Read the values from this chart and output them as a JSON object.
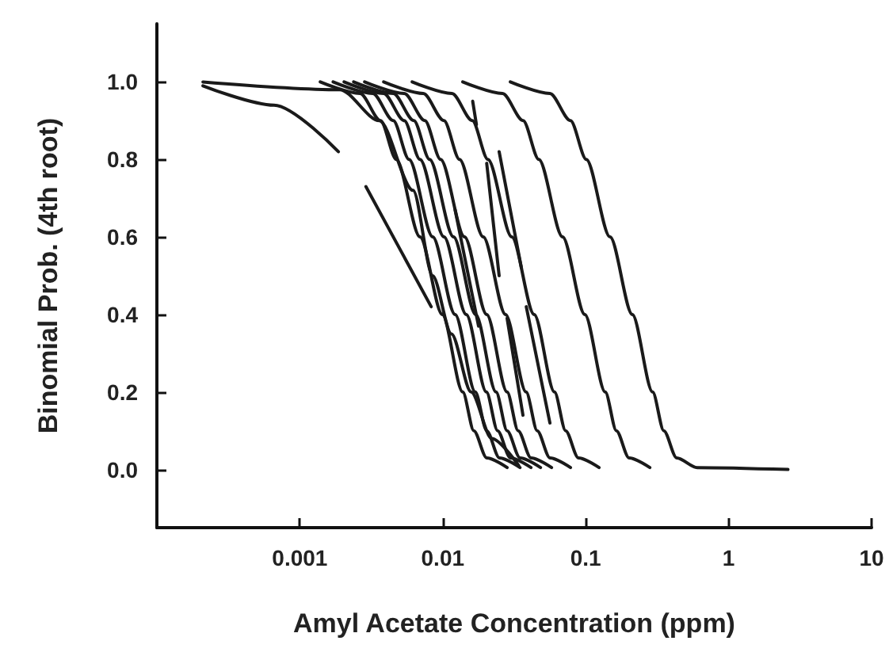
{
  "chart_data": {
    "type": "line",
    "xlabel": "Amyl Acetate Concentration (ppm)",
    "ylabel": "Binomial Prob. (4th root)",
    "log": "x",
    "grid": false,
    "marker": "none",
    "line_style": "solid",
    "xlim": [
      0.0001,
      10
    ],
    "xticks": [
      0.001,
      0.01,
      0.1,
      1,
      10
    ],
    "ylim": [
      -0.15,
      1.15
    ],
    "yticks": [
      {
        "value": 0,
        "label": "0.0"
      },
      {
        "value": 0.2,
        "label": "0.2"
      },
      {
        "value": 0.4,
        "label": "0.4"
      },
      {
        "value": 0.6,
        "label": "0.6"
      },
      {
        "value": 0.8,
        "label": "0.8"
      },
      {
        "value": 1,
        "label": "1.0"
      }
    ],
    "series": [
      {
        "color": "#1a1a1a",
        "x": [
          0.00021,
          0.0019,
          0.0036,
          0.0062,
          0.0085,
          0.0115,
          0.0158,
          0.022,
          0.034
        ],
        "values": [
          1,
          0.98,
          0.9,
          0.72,
          0.5,
          0.35,
          0.2,
          0.08,
          0.01
        ]
      },
      {
        "color": "#1a1a1a",
        "x": [
          0.00139,
          0.00264,
          0.00367,
          0.00473,
          0.00693,
          0.00993,
          0.0138,
          0.0165,
          0.0203,
          0.0282
        ],
        "values": [
          1,
          0.97,
          0.9,
          0.8,
          0.6,
          0.4,
          0.2,
          0.1,
          0.03,
          0.005
        ]
      },
      {
        "color": "#1a1a1a",
        "x": [
          0.00171,
          0.00324,
          0.00451,
          0.00581,
          0.00851,
          0.0122,
          0.0169,
          0.0203,
          0.0249,
          0.0347
        ],
        "values": [
          1,
          0.97,
          0.9,
          0.8,
          0.6,
          0.4,
          0.2,
          0.1,
          0.03,
          0.005
        ]
      },
      {
        "color": "#1a1a1a",
        "x": [
          0.00204,
          0.00386,
          0.00538,
          0.00693,
          0.0102,
          0.0146,
          0.0202,
          0.0242,
          0.0297,
          0.0414
        ],
        "values": [
          1,
          0.97,
          0.9,
          0.8,
          0.6,
          0.4,
          0.2,
          0.1,
          0.03,
          0.005
        ]
      },
      {
        "color": "#1a1a1a",
        "x": [
          0.00238,
          0.00451,
          0.00628,
          0.00809,
          0.0119,
          0.017,
          0.0236,
          0.0282,
          0.0347,
          0.0483
        ],
        "values": [
          1,
          0.97,
          0.9,
          0.8,
          0.6,
          0.4,
          0.2,
          0.1,
          0.03,
          0.005
        ]
      },
      {
        "color": "#1a1a1a",
        "x": [
          0.00284,
          0.00538,
          0.0075,
          0.00966,
          0.0142,
          0.0203,
          0.0282,
          0.0337,
          0.0414,
          0.0577
        ],
        "values": [
          1,
          0.97,
          0.9,
          0.8,
          0.6,
          0.4,
          0.2,
          0.1,
          0.03,
          0.005
        ]
      },
      {
        "color": "#1a1a1a",
        "x": [
          0.00386,
          0.00731,
          0.0102,
          0.0131,
          0.0192,
          0.0275,
          0.0383,
          0.0458,
          0.0562,
          0.0783
        ],
        "values": [
          1,
          0.97,
          0.9,
          0.8,
          0.6,
          0.4,
          0.2,
          0.1,
          0.03,
          0.005
        ]
      },
      {
        "color": "#1a1a1a",
        "x": [
          0.00611,
          0.0116,
          0.0161,
          0.0207,
          0.0304,
          0.0436,
          0.0605,
          0.0724,
          0.0889,
          0.124
        ],
        "values": [
          1,
          0.97,
          0.9,
          0.8,
          0.6,
          0.4,
          0.2,
          0.1,
          0.03,
          0.005
        ]
      },
      {
        "color": "#1a1a1a",
        "x": [
          0.0138,
          0.0262,
          0.0365,
          0.047,
          0.0689,
          0.0986,
          0.137,
          0.164,
          0.201,
          0.281
        ],
        "values": [
          1,
          0.97,
          0.9,
          0.8,
          0.6,
          0.4,
          0.2,
          0.1,
          0.03,
          0.005
        ]
      },
      {
        "color": "#1a1a1a",
        "x": [
          0.0297,
          0.0562,
          0.0783,
          0.101,
          0.148,
          0.212,
          0.294,
          0.352,
          0.433,
          0.603,
          2.6
        ],
        "values": [
          1,
          0.97,
          0.9,
          0.8,
          0.6,
          0.4,
          0.2,
          0.1,
          0.03,
          0.005,
          0
        ]
      },
      {
        "color": "#1a1a1a",
        "x": [
          0.00021,
          0.00066,
          0.00186
        ],
        "values": [
          0.99,
          0.94,
          0.82
        ]
      },
      {
        "color": "#1a1a1a",
        "x": [
          0.0029,
          0.0083
        ],
        "values": [
          0.73,
          0.42
        ]
      },
      {
        "color": "#1a1a1a",
        "x": [
          0.0162,
          0.0172
        ],
        "values": [
          0.95,
          0.89
        ]
      },
      {
        "color": "#1a1a1a",
        "x": [
          0.0203,
          0.0248
        ],
        "values": [
          0.79,
          0.5
        ]
      },
      {
        "color": "#1a1a1a",
        "x": [
          0.0248,
          0.0355
        ],
        "values": [
          0.82,
          0.52
        ]
      },
      {
        "color": "#1a1a1a",
        "x": [
          0.0122,
          0.0178
        ],
        "values": [
          0.67,
          0.37
        ]
      },
      {
        "color": "#1a1a1a",
        "x": [
          0.0282,
          0.0364
        ],
        "values": [
          0.39,
          0.14
        ]
      },
      {
        "color": "#1a1a1a",
        "x": [
          0.0384,
          0.0562
        ],
        "values": [
          0.42,
          0.12
        ]
      }
    ]
  }
}
